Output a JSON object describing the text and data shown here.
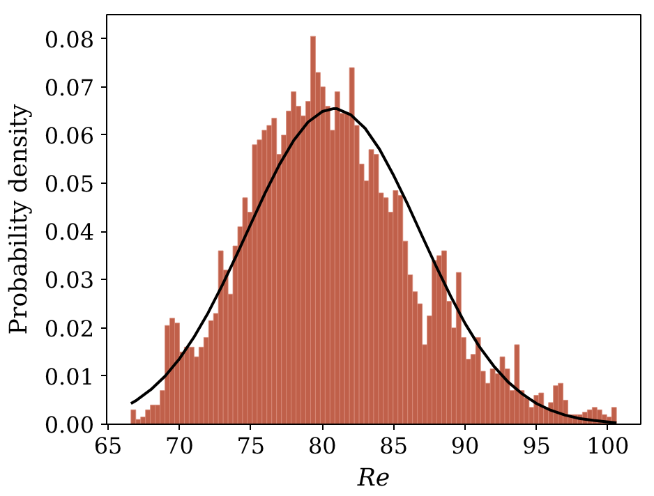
{
  "chart_data": {
    "type": "histogram",
    "xlabel": "Re",
    "ylabel": "Probability density",
    "xlim": [
      64.9,
      102.3
    ],
    "ylim": [
      0,
      0.085
    ],
    "xticks": [
      65,
      70,
      75,
      80,
      85,
      90,
      95,
      100
    ],
    "yticks": [
      {
        "value": 0,
        "label": "0.00"
      },
      {
        "value": 0.01,
        "label": "0.01"
      },
      {
        "value": 0.02,
        "label": "0.02"
      },
      {
        "value": 0.03,
        "label": "0.03"
      },
      {
        "value": 0.04,
        "label": "0.04"
      },
      {
        "value": 0.05,
        "label": "0.05"
      },
      {
        "value": 0.06,
        "label": "0.06"
      },
      {
        "value": 0.07,
        "label": "0.07"
      },
      {
        "value": 0.08,
        "label": "0.08"
      }
    ],
    "grid": false,
    "series": [
      {
        "color": "#c0604a",
        "bins": [
          66.6,
          66.94,
          67.28,
          67.62,
          67.96,
          68.3,
          68.64,
          68.98,
          69.32,
          69.66,
          70,
          70.34,
          70.68,
          71.02,
          71.36,
          71.7,
          72.04,
          72.38,
          72.72,
          73.06,
          73.4,
          73.74,
          74.08,
          74.42,
          74.76,
          75.1,
          75.44,
          75.78,
          76.12,
          76.46,
          76.8,
          77.14,
          77.48,
          77.82,
          78.16,
          78.5,
          78.84,
          79.18,
          79.52,
          79.86,
          80.2,
          80.54,
          80.88,
          81.22,
          81.56,
          81.9,
          82.24,
          82.58,
          82.92,
          83.26,
          83.6,
          83.94,
          84.28,
          84.62,
          84.96,
          85.3,
          85.64,
          85.98,
          86.32,
          86.66,
          87,
          87.34,
          87.68,
          88.02,
          88.36,
          88.7,
          89.04,
          89.38,
          89.72,
          90.06,
          90.4,
          90.74,
          91.08,
          91.42,
          91.76,
          92.1,
          92.44,
          92.78,
          93.12,
          93.46,
          93.8,
          94.14,
          94.48,
          94.82,
          95.16,
          95.5,
          95.84,
          96.18,
          96.52,
          96.86,
          97.2,
          97.54,
          97.88,
          98.22,
          98.56,
          98.9,
          99.24,
          99.58,
          99.92,
          100.26,
          100.6
        ],
        "values": [
          0.003,
          0.001,
          0.0015,
          0.003,
          0.004,
          0.004,
          0.007,
          0.0205,
          0.022,
          0.021,
          0.015,
          0.016,
          0.016,
          0.014,
          0.016,
          0.018,
          0.0215,
          0.023,
          0.036,
          0.032,
          0.027,
          0.037,
          0.041,
          0.047,
          0.044,
          0.058,
          0.059,
          0.061,
          0.062,
          0.0635,
          0.056,
          0.06,
          0.065,
          0.069,
          0.066,
          0.064,
          0.067,
          0.0805,
          0.073,
          0.07,
          0.066,
          0.061,
          0.069,
          0.0645,
          0.0645,
          0.074,
          0.062,
          0.054,
          0.0505,
          0.057,
          0.056,
          0.048,
          0.047,
          0.044,
          0.0485,
          0.0475,
          0.038,
          0.031,
          0.0275,
          0.025,
          0.0165,
          0.0225,
          0.034,
          0.035,
          0.036,
          0.0255,
          0.02,
          0.0315,
          0.018,
          0.0135,
          0.0145,
          0.018,
          0.011,
          0.0085,
          0.0115,
          0.0105,
          0.014,
          0.0115,
          0.007,
          0.0165,
          0.007,
          0.0055,
          0.0035,
          0.006,
          0.0065,
          0.0035,
          0.0045,
          0.008,
          0.0085,
          0.005,
          0.002,
          0.002,
          0.002,
          0.0025,
          0.003,
          0.0035,
          0.003,
          0.002,
          0.0015,
          0.0035
        ]
      },
      {
        "type": "line",
        "color": "#000000",
        "x": [
          66.6,
          67,
          68,
          69,
          70,
          71,
          72,
          73,
          74,
          75,
          76,
          77,
          78,
          79,
          80,
          80.8,
          81,
          82,
          83,
          84,
          85,
          86,
          87,
          88,
          89,
          90,
          91,
          92,
          93,
          94,
          95,
          96,
          97,
          98,
          99,
          100.6
        ],
        "values": [
          0.0043,
          0.005,
          0.0072,
          0.01,
          0.0136,
          0.018,
          0.0231,
          0.0289,
          0.0351,
          0.0416,
          0.048,
          0.0539,
          0.0589,
          0.0627,
          0.0649,
          0.0655,
          0.0655,
          0.0642,
          0.0614,
          0.0571,
          0.0516,
          0.0455,
          0.039,
          0.0326,
          0.0265,
          0.0209,
          0.0161,
          0.0121,
          0.0088,
          0.0063,
          0.0043,
          0.0029,
          0.0019,
          0.0012,
          0.0008,
          0.0003
        ]
      }
    ]
  }
}
